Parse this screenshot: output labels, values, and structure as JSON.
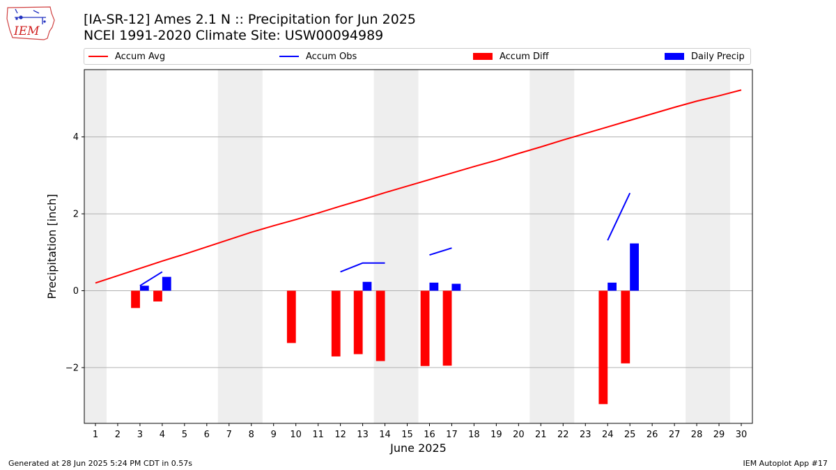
{
  "title_line1": "[IA-SR-12] Ames 2.1 N :: Precipitation for Jun 2025",
  "title_line2": "NCEI 1991-2020 Climate Site: USW00094989",
  "logo_text": "IEM",
  "legend": [
    {
      "label": "Accum Avg",
      "color": "#ff0000",
      "kind": "line"
    },
    {
      "label": "Accum Obs",
      "color": "#0000ff",
      "kind": "line"
    },
    {
      "label": "Accum Diff",
      "color": "#ff0000",
      "kind": "bar"
    },
    {
      "label": "Daily Precip",
      "color": "#0000ff",
      "kind": "bar"
    }
  ],
  "footer_left": "Generated at 28 Jun 2025 5:24 PM CDT in 0.57s",
  "footer_right": "IEM Autoplot App #17",
  "chart_data": {
    "type": "bar",
    "xlabel": "June 2025",
    "ylabel": "Precipitation [inch]",
    "xlim": [
      0.5,
      30.5
    ],
    "ylim": [
      -3.45,
      5.75
    ],
    "yticks": [
      -2,
      0,
      2,
      4
    ],
    "xticks": [
      1,
      2,
      3,
      4,
      5,
      6,
      7,
      8,
      9,
      10,
      11,
      12,
      13,
      14,
      15,
      16,
      17,
      18,
      19,
      20,
      21,
      22,
      23,
      24,
      25,
      26,
      27,
      28,
      29,
      30
    ],
    "grid": "y",
    "legend_position": "top",
    "weekend_shading": [
      [
        0.5,
        1.5
      ],
      [
        6.5,
        8.5
      ],
      [
        13.5,
        15.5
      ],
      [
        20.5,
        22.5
      ],
      [
        27.5,
        29.5
      ]
    ],
    "series": [
      {
        "name": "Accum Avg",
        "type": "line",
        "color": "#ff0000",
        "x": [
          1,
          2,
          3,
          4,
          5,
          6,
          7,
          8,
          9,
          10,
          11,
          12,
          13,
          14,
          15,
          16,
          17,
          18,
          19,
          20,
          21,
          22,
          23,
          24,
          25,
          26,
          27,
          28,
          29,
          30
        ],
        "values": [
          0.2,
          0.39,
          0.58,
          0.77,
          0.95,
          1.14,
          1.33,
          1.52,
          1.69,
          1.85,
          2.02,
          2.2,
          2.37,
          2.55,
          2.72,
          2.89,
          3.06,
          3.23,
          3.39,
          3.57,
          3.74,
          3.92,
          4.09,
          4.26,
          4.43,
          4.6,
          4.77,
          4.93,
          5.07,
          5.22
        ]
      },
      {
        "name": "Accum Obs",
        "type": "line",
        "color": "#0000ff",
        "segments": [
          {
            "x": [
              3,
              4
            ],
            "values": [
              0.13,
              0.49
            ]
          },
          {
            "x": [
              12,
              13,
              14
            ],
            "values": [
              0.49,
              0.72,
              0.72
            ]
          },
          {
            "x": [
              16,
              17
            ],
            "values": [
              0.93,
              1.11
            ]
          },
          {
            "x": [
              24,
              25
            ],
            "values": [
              1.31,
              2.54
            ]
          }
        ]
      },
      {
        "name": "Accum Diff",
        "type": "bar",
        "color": "#ff0000",
        "x": [
          3,
          4,
          10,
          12,
          13,
          14,
          16,
          17,
          24,
          25
        ],
        "values": [
          -0.45,
          -0.28,
          -1.36,
          -1.71,
          -1.65,
          -1.83,
          -1.96,
          -1.95,
          -2.95,
          -1.89
        ]
      },
      {
        "name": "Daily Precip",
        "type": "bar",
        "color": "#0000ff",
        "x": [
          3,
          4,
          13,
          16,
          17,
          24,
          25
        ],
        "values": [
          0.13,
          0.36,
          0.23,
          0.21,
          0.18,
          0.21,
          1.23
        ]
      }
    ]
  }
}
